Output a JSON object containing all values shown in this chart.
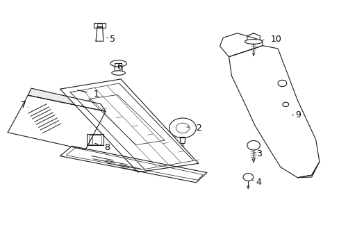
{
  "title": "",
  "background_color": "#ffffff",
  "line_color": "#1a1a1a",
  "label_color": "#000000",
  "fig_width": 4.89,
  "fig_height": 3.6,
  "dpi": 100
}
